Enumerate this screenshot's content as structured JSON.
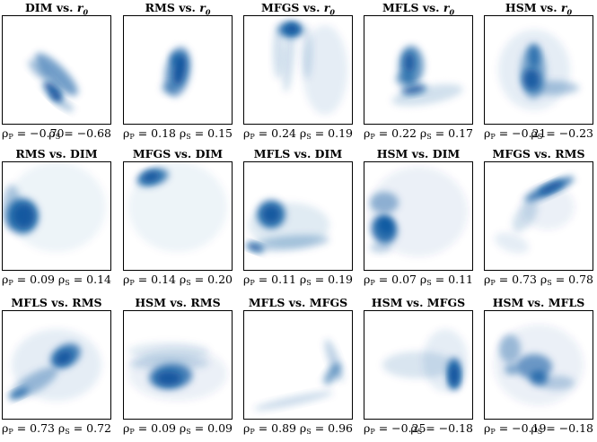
{
  "accent_color": "#08519c",
  "chart_data": [
    {
      "type": "heatmap",
      "title": "DIM vs. r",
      "title_subscript": "0",
      "rho_p": "−0.70",
      "rho_s": "−0.68"
    },
    {
      "type": "heatmap",
      "title": "RMS vs. r",
      "title_subscript": "0",
      "rho_p": "0.18",
      "rho_s": "0.15"
    },
    {
      "type": "heatmap",
      "title": "MFGS vs. r",
      "title_subscript": "0",
      "rho_p": "0.24",
      "rho_s": "0.19"
    },
    {
      "type": "heatmap",
      "title": "MFLS vs. r",
      "title_subscript": "0",
      "rho_p": "0.22",
      "rho_s": "0.17"
    },
    {
      "type": "heatmap",
      "title": "HSM vs. r",
      "title_subscript": "0",
      "rho_p": "−0.21",
      "rho_s": "−0.23"
    },
    {
      "type": "heatmap",
      "title": "RMS vs. DIM",
      "title_subscript": "",
      "rho_p": "0.09",
      "rho_s": "0.14"
    },
    {
      "type": "heatmap",
      "title": "MFGS vs. DIM",
      "title_subscript": "",
      "rho_p": "0.14",
      "rho_s": "0.20"
    },
    {
      "type": "heatmap",
      "title": "MFLS vs. DIM",
      "title_subscript": "",
      "rho_p": "0.11",
      "rho_s": "0.19"
    },
    {
      "type": "heatmap",
      "title": "HSM vs. DIM",
      "title_subscript": "",
      "rho_p": "0.07",
      "rho_s": "0.11"
    },
    {
      "type": "heatmap",
      "title": "MFGS vs. RMS",
      "title_subscript": "",
      "rho_p": "0.73",
      "rho_s": "0.78"
    },
    {
      "type": "heatmap",
      "title": "MFLS vs. RMS",
      "title_subscript": "",
      "rho_p": "0.73",
      "rho_s": "0.72"
    },
    {
      "type": "heatmap",
      "title": "HSM vs. RMS",
      "title_subscript": "",
      "rho_p": "0.09",
      "rho_s": "0.09"
    },
    {
      "type": "heatmap",
      "title": "MFLS vs. MFGS",
      "title_subscript": "",
      "rho_p": "0.89",
      "rho_s": "0.96"
    },
    {
      "type": "heatmap",
      "title": "HSM vs. MFGS",
      "title_subscript": "",
      "rho_p": "−0.25",
      "rho_s": "−0.18"
    },
    {
      "type": "heatmap",
      "title": "HSM vs. MFLS",
      "title_subscript": "",
      "rho_p": "−0.19",
      "rho_s": "−0.18"
    }
  ]
}
